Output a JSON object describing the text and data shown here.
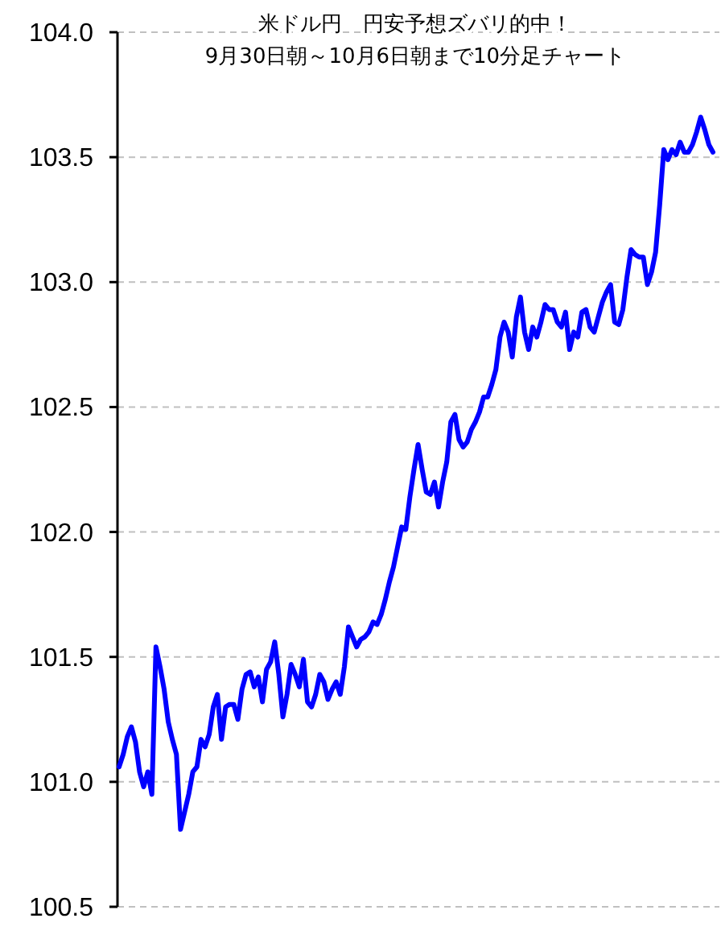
{
  "chart_data": {
    "type": "line",
    "title": "米ドル円　円安予想ズバリ的中！",
    "subtitle": "9月30日朝～10月6日朝まで10分足チャート",
    "categories": [
      null,
      null,
      null,
      null,
      null,
      null,
      null,
      null,
      null,
      null,
      null,
      null,
      null,
      null,
      null,
      null,
      null,
      null,
      null,
      null,
      null,
      null,
      null,
      null,
      null,
      null,
      null,
      null,
      null,
      null,
      null,
      null,
      null,
      null,
      null,
      null,
      null,
      null,
      null,
      null,
      null,
      null,
      null,
      null,
      null,
      null,
      null,
      null,
      null,
      null,
      null,
      null,
      null,
      null,
      null,
      null,
      null,
      null,
      null,
      null,
      null,
      null,
      null,
      null,
      null,
      null,
      null,
      null,
      null,
      null,
      null,
      null,
      null,
      null,
      null,
      null,
      null,
      null,
      null,
      null,
      null,
      null,
      null,
      null,
      null,
      null,
      null,
      null,
      null,
      null,
      null,
      null,
      null,
      null,
      null,
      null,
      null,
      null,
      null,
      null,
      null,
      null,
      null,
      null,
      null,
      null,
      null,
      null,
      null,
      null,
      null,
      null,
      null,
      null,
      null,
      null,
      null,
      null,
      null,
      null,
      null,
      null,
      null,
      null,
      null,
      null,
      null,
      null,
      null,
      null,
      null,
      null,
      null,
      null,
      null,
      null,
      null,
      null,
      null,
      null,
      null,
      null,
      null,
      null,
      null,
      null
    ],
    "values": [
      101.06,
      101.11,
      101.18,
      101.22,
      101.16,
      101.04,
      100.98,
      101.04,
      100.95,
      101.54,
      101.46,
      101.37,
      101.24,
      101.17,
      101.11,
      100.81,
      100.88,
      100.95,
      101.04,
      101.06,
      101.17,
      101.14,
      101.19,
      101.3,
      101.35,
      101.17,
      101.3,
      101.31,
      101.31,
      101.25,
      101.37,
      101.43,
      101.44,
      101.38,
      101.42,
      101.32,
      101.45,
      101.48,
      101.56,
      101.43,
      101.26,
      101.35,
      101.47,
      101.43,
      101.38,
      101.49,
      101.32,
      101.3,
      101.35,
      101.43,
      101.4,
      101.33,
      101.37,
      101.4,
      101.35,
      101.46,
      101.62,
      101.58,
      101.54,
      101.57,
      101.58,
      101.6,
      101.64,
      101.63,
      101.67,
      101.73,
      101.8,
      101.86,
      101.94,
      102.02,
      102.01,
      102.14,
      102.25,
      102.35,
      102.25,
      102.16,
      102.15,
      102.2,
      102.1,
      102.2,
      102.28,
      102.44,
      102.47,
      102.37,
      102.34,
      102.36,
      102.41,
      102.44,
      102.48,
      102.54,
      102.54,
      102.59,
      102.65,
      102.78,
      102.84,
      102.8,
      102.7,
      102.86,
      102.94,
      102.8,
      102.73,
      102.82,
      102.78,
      102.84,
      102.91,
      102.89,
      102.89,
      102.84,
      102.82,
      102.88,
      102.73,
      102.8,
      102.78,
      102.88,
      102.89,
      102.82,
      102.8,
      102.86,
      102.92,
      102.96,
      102.99,
      102.84,
      102.83,
      102.89,
      103.02,
      103.13,
      103.11,
      103.1,
      103.1,
      102.99,
      103.04,
      103.12,
      103.31,
      103.53,
      103.49,
      103.53,
      103.51,
      103.56,
      103.52,
      103.52,
      103.55,
      103.6,
      103.66,
      103.61,
      103.55,
      103.52
    ],
    "color": "#0000ff",
    "line_style": "solid",
    "grid": "y",
    "tick_labels": "y",
    "ylim": [
      100.5,
      104.0
    ],
    "yticks": [
      {
        "value": 100.5,
        "label": "100.5"
      },
      {
        "value": 101,
        "label": "101.0"
      },
      {
        "value": 101.5,
        "label": "101.5"
      },
      {
        "value": 102,
        "label": "102.0"
      },
      {
        "value": 102.5,
        "label": "102.5"
      },
      {
        "value": 103,
        "label": "103.0"
      },
      {
        "value": 103.5,
        "label": "103.5"
      },
      {
        "value": 104,
        "label": "104.0"
      }
    ]
  }
}
